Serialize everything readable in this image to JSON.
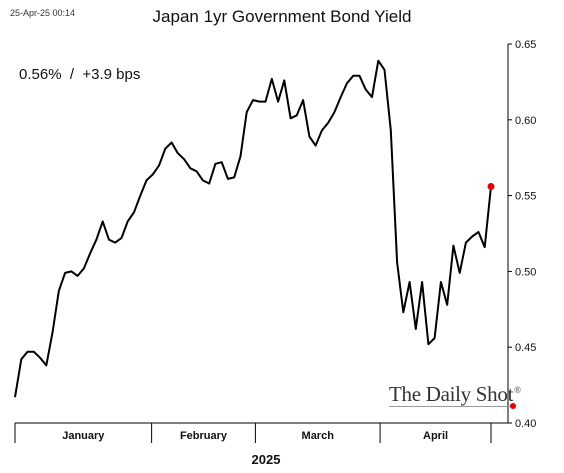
{
  "timestamp": "25-Apr-25 00:14",
  "brand": {
    "text": "The Daily Shot",
    "mark": "®"
  },
  "chart_data": {
    "type": "line",
    "title": "Japan 1yr Government Bond Yield",
    "annotation": "0.56%  /  +3.9 bps",
    "xlabel": "2025",
    "ylabel": "",
    "ylim": [
      0.4,
      0.65
    ],
    "yticks": [
      "0.40",
      "0.45",
      "0.50",
      "0.55",
      "0.60",
      "0.65"
    ],
    "month_labels": [
      "January",
      "February",
      "March",
      "April"
    ],
    "grid": false,
    "line_color": "#000000",
    "marker_color": "#e60000",
    "series": [
      {
        "values": [
          0.417,
          0.442,
          0.447,
          0.447,
          0.443,
          0.438,
          0.46,
          0.487,
          0.499,
          0.5,
          0.497,
          0.502,
          0.512,
          0.521,
          0.533,
          0.521,
          0.519,
          0.522,
          0.533,
          0.539,
          0.55,
          0.56,
          0.564,
          0.57,
          0.581,
          0.585,
          0.578,
          0.574,
          0.568,
          0.566,
          0.56,
          0.558,
          0.571,
          0.572,
          0.561,
          0.562,
          0.576,
          0.605,
          0.613,
          0.612,
          0.612,
          0.627,
          0.612,
          0.626,
          0.601,
          0.603,
          0.613,
          0.589,
          0.583,
          0.593,
          0.598,
          0.605,
          0.615,
          0.624,
          0.629,
          0.629,
          0.62,
          0.615,
          0.639,
          0.633,
          0.593,
          0.506,
          0.473,
          0.493,
          0.462,
          0.493,
          0.452,
          0.456,
          0.493,
          0.478,
          0.517,
          0.499,
          0.519,
          0.523,
          0.526,
          0.516,
          0.556
        ]
      }
    ]
  }
}
